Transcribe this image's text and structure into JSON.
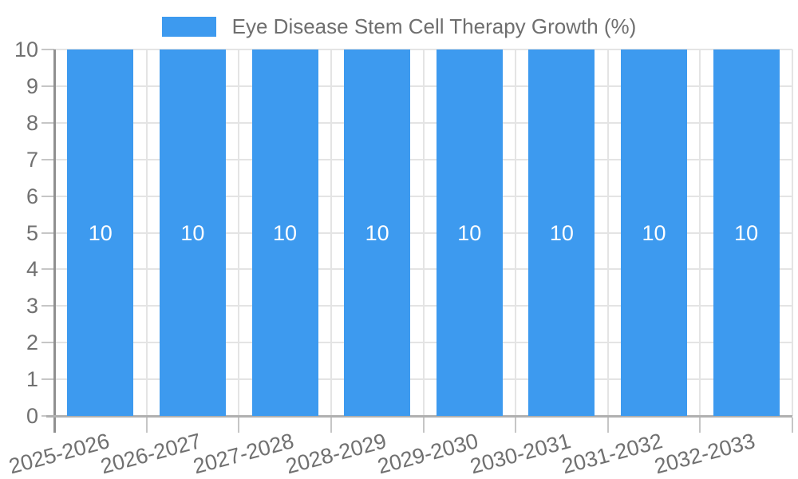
{
  "chart_data": {
    "type": "bar",
    "title": "Eye Disease Stem Cell Therapy Growth (%)",
    "categories": [
      "2025-2026",
      "2026-2027",
      "2027-2028",
      "2028-2029",
      "2029-2030",
      "2030-2031",
      "2031-2032",
      "2032-2033"
    ],
    "series": [
      {
        "name": "Eye Disease Stem Cell Therapy Growth (%)",
        "color": "#3D9AEF",
        "values": [
          10,
          10,
          10,
          10,
          10,
          10,
          10,
          10
        ]
      }
    ],
    "xlabel": "",
    "ylabel": "",
    "ylim": [
      0,
      10
    ],
    "yticks": [
      0,
      1,
      2,
      3,
      4,
      5,
      6,
      7,
      8,
      9,
      10
    ],
    "grid": true,
    "legend_position": "top-center",
    "value_labels": {
      "show": true,
      "position": "middle",
      "color": "#FFFFFF"
    },
    "x_label_rotation_deg": -15,
    "colors": {
      "bar": "#3D9AEF",
      "axis_text": "#707070",
      "value_label_text": "#FFFFFF",
      "gridline": "#E4E4E4",
      "tick": "#C6C6C6",
      "y_axis_line": "#909090",
      "x_axis_line": "#B0B0B0",
      "background": "#FFFFFF"
    }
  }
}
